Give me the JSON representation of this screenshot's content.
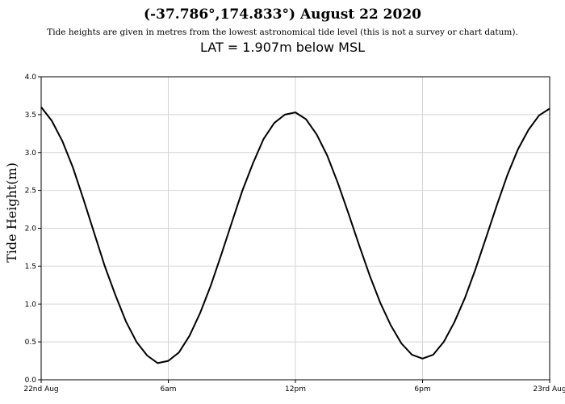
{
  "chart_data": {
    "type": "line",
    "title": "(-37.786°,174.833°) August 22 2020",
    "subtitle": "Tide heights are given in metres from the lowest astronomical tide level (this is not a survey or chart datum).",
    "subtitle2": "LAT = 1.907m below MSL",
    "xlabel": "",
    "ylabel": "Tide Height(m)",
    "ylim": [
      0,
      4
    ],
    "xlim": [
      0,
      24
    ],
    "grid": true,
    "y_ticks": [
      "0.0",
      "0.5",
      "1.0",
      "1.5",
      "2.0",
      "2.5",
      "3.0",
      "3.5",
      "4.0"
    ],
    "x_ticks": [
      {
        "x": 0,
        "label": "22nd Aug"
      },
      {
        "x": 6,
        "label": "6am"
      },
      {
        "x": 12,
        "label": "12pm"
      },
      {
        "x": 18,
        "label": "6pm"
      },
      {
        "x": 24,
        "label": "23rd Aug"
      }
    ],
    "series": [
      {
        "color": "#000000",
        "x": [
          0,
          0.5,
          1,
          1.5,
          2,
          2.5,
          3,
          3.5,
          4,
          4.5,
          5,
          5.5,
          6,
          6.5,
          7,
          7.5,
          8,
          8.5,
          9,
          9.5,
          10,
          10.5,
          11,
          11.5,
          12,
          12.5,
          13,
          13.5,
          14,
          14.5,
          15,
          15.5,
          16,
          16.5,
          17,
          17.5,
          18,
          18.5,
          19,
          19.5,
          20,
          20.5,
          21,
          21.5,
          22,
          22.5,
          23,
          23.5,
          24
        ],
        "y": [
          3.6,
          3.42,
          3.15,
          2.8,
          2.38,
          1.94,
          1.5,
          1.12,
          0.77,
          0.5,
          0.32,
          0.22,
          0.25,
          0.36,
          0.58,
          0.88,
          1.24,
          1.65,
          2.08,
          2.5,
          2.86,
          3.18,
          3.39,
          3.5,
          3.53,
          3.44,
          3.24,
          2.96,
          2.6,
          2.2,
          1.78,
          1.38,
          1.02,
          0.72,
          0.48,
          0.33,
          0.28,
          0.33,
          0.5,
          0.76,
          1.08,
          1.46,
          1.88,
          2.3,
          2.7,
          3.04,
          3.3,
          3.49,
          3.58
        ]
      }
    ]
  }
}
